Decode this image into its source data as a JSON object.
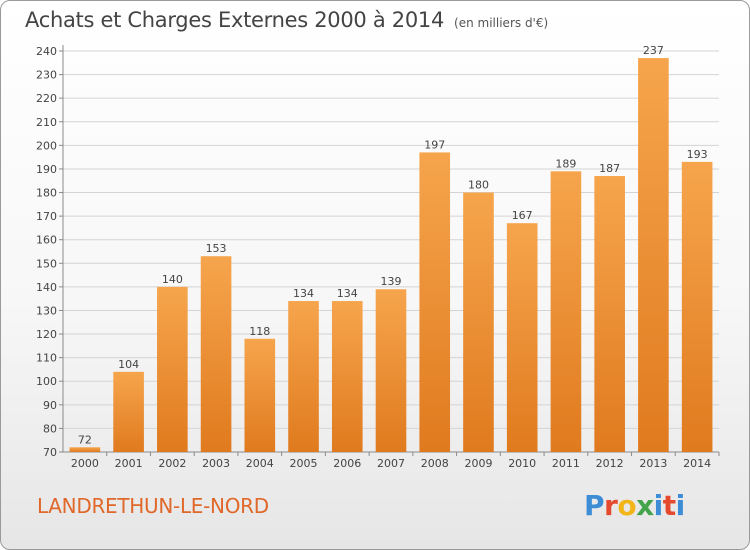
{
  "header": {
    "title": "Achats et Charges Externes 2000 à 2014",
    "unit": "(en milliers d'€)"
  },
  "footer": {
    "place": "LANDRETHUN-LE-NORD",
    "logo": "Proxiti"
  },
  "colors": {
    "bar_light": "#f6a54d",
    "bar_dark": "#e07a1e",
    "place_text": "#e0682a",
    "grid": "#d4d4d4",
    "axis": "#8a8a8a"
  },
  "chart_data": {
    "type": "bar",
    "title": "Achats et Charges Externes 2000 à 2014",
    "subtitle": "(en milliers d'€)",
    "categories": [
      "2000",
      "2001",
      "2002",
      "2003",
      "2004",
      "2005",
      "2006",
      "2007",
      "2008",
      "2009",
      "2010",
      "2011",
      "2012",
      "2013",
      "2014"
    ],
    "values": [
      72,
      104,
      140,
      153,
      118,
      134,
      134,
      139,
      197,
      180,
      167,
      189,
      187,
      237,
      193
    ],
    "ylim": [
      70,
      240
    ],
    "yticks": [
      70,
      80,
      90,
      100,
      110,
      120,
      130,
      140,
      150,
      160,
      170,
      180,
      190,
      200,
      210,
      220,
      230,
      240
    ],
    "grid": true,
    "data_labels": true
  }
}
